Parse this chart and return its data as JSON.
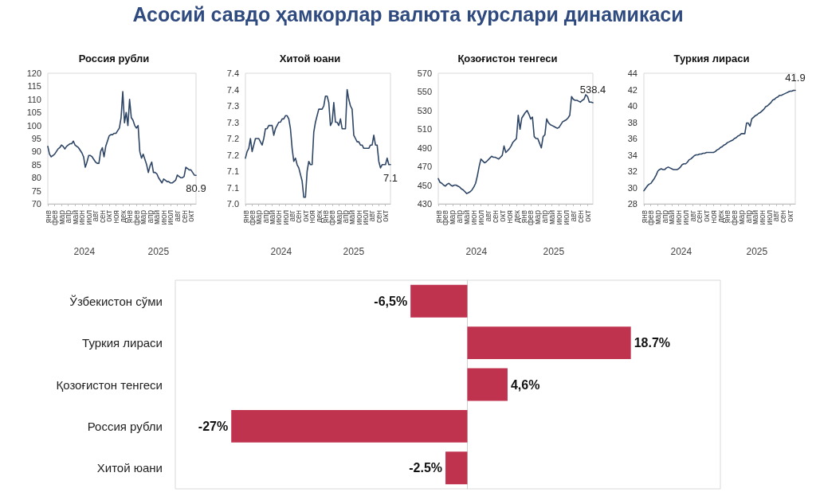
{
  "chart_data": [
    {
      "type": "other",
      "title": "Асосий савдо ҳамкорлар валюта курслари динамикаси"
    },
    {
      "type": "line",
      "title": "Россия рубли",
      "marker": "none",
      "categories": [
        "янв",
        null,
        null,
        null,
        "фев",
        null,
        null,
        null,
        "мар",
        null,
        null,
        null,
        "апр",
        null,
        null,
        null,
        "май",
        null,
        null,
        null,
        "июн",
        null,
        null,
        null,
        "июл",
        null,
        null,
        null,
        "авг",
        null,
        null,
        null,
        "сен",
        null,
        null,
        null,
        "окт",
        null,
        null,
        null,
        "ноя",
        null,
        null,
        null,
        "дек",
        null,
        null,
        null,
        "янв",
        null,
        null,
        null,
        "фев",
        null,
        null,
        null,
        "мар",
        null,
        null,
        null,
        "апр",
        null,
        null,
        null,
        "май",
        null,
        null,
        null,
        "июн",
        null,
        null,
        null,
        "июл",
        null,
        null,
        null,
        "авг",
        null,
        null,
        null,
        "сен",
        null,
        null,
        null,
        "окт",
        null,
        null,
        null
      ],
      "ylim": [
        70,
        120
      ],
      "yticks": [
        70,
        75,
        80,
        85,
        90,
        95,
        100,
        105,
        110,
        115,
        120
      ],
      "annotations": [
        "2024",
        "2025"
      ],
      "series": [
        {
          "color": "#2e4566",
          "values": [
            92,
            89,
            88,
            88.5,
            89,
            90,
            91,
            91.5,
            92.5,
            92,
            91,
            92,
            92.5,
            93,
            93,
            94,
            92.5,
            92,
            91.5,
            90.5,
            89.5,
            88,
            84,
            86,
            88.5,
            88.5,
            88,
            87,
            86,
            85.5,
            85.5,
            90,
            91.5,
            88,
            92,
            94,
            96,
            96.5,
            96.5,
            97,
            97,
            98,
            99,
            103,
            113,
            101,
            105,
            100,
            110,
            103,
            102,
            100,
            99,
            100,
            90,
            87.5,
            89,
            87,
            85,
            82,
            84.5,
            86,
            82,
            82,
            81.5,
            80,
            79,
            78,
            79.5,
            79,
            78.5,
            78.5,
            78,
            78,
            78.5,
            79,
            81,
            80.5,
            80,
            80,
            80.5,
            84,
            83.5,
            83,
            83,
            82,
            81,
            80.9
          ],
          "value_labels": [
            null,
            null,
            null,
            null,
            null,
            null,
            null,
            null,
            null,
            null,
            null,
            null,
            null,
            null,
            null,
            null,
            null,
            null,
            null,
            null,
            null,
            null,
            null,
            null,
            null,
            null,
            null,
            null,
            null,
            null,
            null,
            null,
            null,
            null,
            null,
            null,
            null,
            null,
            null,
            null,
            null,
            null,
            null,
            null,
            null,
            null,
            null,
            null,
            null,
            null,
            null,
            null,
            null,
            null,
            null,
            null,
            null,
            null,
            null,
            null,
            null,
            null,
            null,
            null,
            null,
            null,
            null,
            null,
            null,
            null,
            null,
            null,
            null,
            null,
            null,
            null,
            null,
            null,
            null,
            null,
            null,
            null,
            null,
            null,
            null,
            null,
            null,
            "80.9"
          ]
        }
      ]
    },
    {
      "type": "line",
      "title": "Хитой юани",
      "marker": "none",
      "categories": [
        "янв",
        null,
        null,
        null,
        "фев",
        null,
        null,
        null,
        "мар",
        null,
        null,
        null,
        "апр",
        null,
        null,
        null,
        "май",
        null,
        null,
        null,
        "июн",
        null,
        null,
        null,
        "июл",
        null,
        null,
        null,
        "авг",
        null,
        null,
        null,
        "сен",
        null,
        null,
        null,
        "окт",
        null,
        null,
        null,
        "ноя",
        null,
        null,
        null,
        "дек",
        null,
        null,
        null,
        "янв",
        null,
        null,
        null,
        "фев",
        null,
        null,
        null,
        "мар",
        null,
        null,
        null,
        "апр",
        null,
        null,
        null,
        "май",
        null,
        null,
        null,
        "июн",
        null,
        null,
        null,
        "июл",
        null,
        null,
        null,
        "авг",
        null,
        null,
        null,
        "сен",
        null,
        null,
        null,
        "окт",
        null,
        null,
        null
      ],
      "ylim": [
        7.0,
        7.4
      ],
      "yticks": [
        {
          "value": 7.0,
          "label": "7.0"
        },
        {
          "value": 7.05,
          "label": "7.1"
        },
        {
          "value": 7.1,
          "label": "7.1"
        },
        {
          "value": 7.15,
          "label": "7.2"
        },
        {
          "value": 7.2,
          "label": "7.2"
        },
        {
          "value": 7.25,
          "label": "7.3"
        },
        {
          "value": 7.3,
          "label": "7.3"
        },
        {
          "value": 7.35,
          "label": "7.4"
        },
        {
          "value": 7.4,
          "label": "7.4"
        }
      ],
      "annotations": [
        "2024",
        "2025"
      ],
      "series": [
        {
          "color": "#2e4566",
          "values": [
            7.14,
            7.16,
            7.17,
            7.2,
            7.16,
            7.18,
            7.2,
            7.2,
            7.2,
            7.19,
            7.18,
            7.2,
            7.23,
            7.23,
            7.24,
            7.24,
            7.24,
            7.21,
            7.23,
            7.24,
            7.25,
            7.25,
            7.26,
            7.26,
            7.27,
            7.27,
            7.26,
            7.23,
            7.17,
            7.13,
            7.14,
            7.12,
            7.11,
            7.09,
            7.07,
            7.02,
            7.02,
            7.1,
            7.13,
            7.12,
            7.12,
            7.22,
            7.25,
            7.27,
            7.29,
            7.29,
            7.29,
            7.3,
            7.33,
            7.33,
            7.31,
            7.24,
            7.25,
            7.31,
            7.25,
            7.25,
            7.24,
            7.26,
            7.23,
            7.23,
            7.23,
            7.35,
            7.32,
            7.3,
            7.29,
            7.21,
            7.2,
            7.19,
            7.19,
            7.18,
            7.18,
            7.17,
            7.17,
            7.17,
            7.17,
            7.18,
            7.18,
            7.21,
            7.18,
            7.18,
            7.13,
            7.11,
            7.12,
            7.12,
            7.12,
            7.14,
            7.12,
            7.12
          ],
          "value_labels": [
            null,
            null,
            null,
            null,
            null,
            null,
            null,
            null,
            null,
            null,
            null,
            null,
            null,
            null,
            null,
            null,
            null,
            null,
            null,
            null,
            null,
            null,
            null,
            null,
            null,
            null,
            null,
            null,
            null,
            null,
            null,
            null,
            null,
            null,
            null,
            null,
            null,
            null,
            null,
            null,
            null,
            null,
            null,
            null,
            null,
            null,
            null,
            null,
            null,
            null,
            null,
            null,
            null,
            null,
            null,
            null,
            null,
            null,
            null,
            null,
            null,
            null,
            null,
            null,
            null,
            null,
            null,
            null,
            null,
            null,
            null,
            null,
            null,
            null,
            null,
            null,
            null,
            null,
            null,
            null,
            null,
            null,
            null,
            null,
            null,
            null,
            null,
            "7.1"
          ]
        }
      ]
    },
    {
      "type": "line",
      "title": "Қозоғистон тенгеси",
      "marker": "none",
      "categories": [
        "янв",
        null,
        null,
        null,
        "фев",
        null,
        null,
        null,
        "мар",
        null,
        null,
        null,
        "апр",
        null,
        null,
        null,
        "май",
        null,
        null,
        null,
        "июн",
        null,
        null,
        null,
        "июл",
        null,
        null,
        null,
        "авг",
        null,
        null,
        null,
        "сен",
        null,
        null,
        null,
        "окт",
        null,
        null,
        null,
        "ноя",
        null,
        null,
        null,
        "дек",
        null,
        null,
        null,
        "янв",
        null,
        null,
        null,
        "фев",
        null,
        null,
        null,
        "мар",
        null,
        null,
        null,
        "апр",
        null,
        null,
        null,
        "май",
        null,
        null,
        null,
        "июн",
        null,
        null,
        null,
        "июл",
        null,
        null,
        null,
        "авг",
        null,
        null,
        null,
        "сен",
        null,
        null,
        null,
        "окт",
        null,
        null,
        null
      ],
      "ylim": [
        430,
        570
      ],
      "yticks": [
        430,
        450,
        470,
        490,
        510,
        530,
        550,
        570
      ],
      "annotations": [
        "2024",
        "2025"
      ],
      "series": [
        {
          "color": "#2e4566",
          "values": [
            457,
            453,
            452,
            450,
            449,
            451,
            452,
            450,
            449,
            450,
            450,
            449,
            448,
            446,
            445,
            443,
            441,
            442,
            443,
            445,
            448,
            452,
            460,
            470,
            478,
            476,
            474,
            475,
            477,
            479,
            481,
            480,
            480,
            479,
            478,
            480,
            482,
            492,
            485,
            487,
            489,
            492,
            496,
            498,
            500,
            525,
            510,
            522,
            525,
            528,
            530,
            526,
            521,
            523,
            502,
            500,
            500,
            495,
            490,
            502,
            504,
            521,
            517,
            515,
            514,
            513,
            512,
            511,
            512,
            515,
            518,
            519,
            520,
            522,
            525,
            545,
            542,
            541,
            541,
            540,
            539,
            541,
            542,
            547,
            545,
            539,
            539,
            538.4
          ],
          "value_labels": [
            null,
            null,
            null,
            null,
            null,
            null,
            null,
            null,
            null,
            null,
            null,
            null,
            null,
            null,
            null,
            null,
            null,
            null,
            null,
            null,
            null,
            null,
            null,
            null,
            null,
            null,
            null,
            null,
            null,
            null,
            null,
            null,
            null,
            null,
            null,
            null,
            null,
            null,
            null,
            null,
            null,
            null,
            null,
            null,
            null,
            null,
            null,
            null,
            null,
            null,
            null,
            null,
            null,
            null,
            null,
            null,
            null,
            null,
            null,
            null,
            null,
            null,
            null,
            null,
            null,
            null,
            null,
            null,
            null,
            null,
            null,
            null,
            null,
            null,
            null,
            null,
            null,
            null,
            null,
            null,
            null,
            null,
            null,
            null,
            null,
            null,
            null,
            "538.4"
          ]
        }
      ]
    },
    {
      "type": "line",
      "title": "Туркия лираси",
      "marker": "none",
      "categories": [
        "янв",
        null,
        null,
        null,
        "фев",
        null,
        null,
        null,
        "мар",
        null,
        null,
        null,
        "апр",
        null,
        null,
        null,
        "май",
        null,
        null,
        null,
        "июн",
        null,
        null,
        null,
        "июл",
        null,
        null,
        null,
        "авг",
        null,
        null,
        null,
        "сен",
        null,
        null,
        null,
        "окт",
        null,
        null,
        null,
        "ноя",
        null,
        null,
        null,
        "дек",
        null,
        null,
        null,
        "янв",
        null,
        null,
        null,
        "фев",
        null,
        null,
        null,
        "мар",
        null,
        null,
        null,
        "апр",
        null,
        null,
        null,
        "май",
        null,
        null,
        null,
        "июн",
        null,
        null,
        null,
        "июл",
        null,
        null,
        null,
        "авг",
        null,
        null,
        null,
        "сен",
        null,
        null,
        null,
        "окт",
        null,
        null,
        null
      ],
      "ylim": [
        28,
        44
      ],
      "yticks": [
        28,
        30,
        32,
        34,
        36,
        38,
        40,
        42,
        44
      ],
      "annotations": [
        "2024",
        "2025"
      ],
      "series": [
        {
          "color": "#2e4566",
          "values": [
            29.6,
            29.9,
            30.2,
            30.4,
            30.5,
            30.8,
            31.1,
            31.5,
            32,
            32.2,
            32.3,
            32.2,
            32.2,
            32.4,
            32.5,
            32.4,
            32.3,
            32.2,
            32.2,
            32.2,
            32.3,
            32.5,
            32.8,
            32.9,
            32.9,
            33.1,
            33.4,
            33.5,
            33.7,
            33.9,
            34,
            34,
            34.1,
            34.1,
            34.2,
            34.2,
            34.3,
            34.3,
            34.3,
            34.3,
            34.3,
            34.4,
            34.6,
            34.7,
            34.9,
            35,
            35.2,
            35.3,
            35.5,
            35.6,
            35.7,
            35.8,
            36,
            36.1,
            36.3,
            36.4,
            36.6,
            36.6,
            36.6,
            37.9,
            37.9,
            37.5,
            38.4,
            38.6,
            38.8,
            38.9,
            39.1,
            39.2,
            39.4,
            39.6,
            39.9,
            40,
            40.2,
            40.4,
            40.7,
            40.8,
            41,
            41.1,
            41.3,
            41.3,
            41.4,
            41.5,
            41.6,
            41.7,
            41.8,
            41.8,
            41.9,
            41.9
          ],
          "value_labels": [
            null,
            null,
            null,
            null,
            null,
            null,
            null,
            null,
            null,
            null,
            null,
            null,
            null,
            null,
            null,
            null,
            null,
            null,
            null,
            null,
            null,
            null,
            null,
            null,
            null,
            null,
            null,
            null,
            null,
            null,
            null,
            null,
            null,
            null,
            null,
            null,
            null,
            null,
            null,
            null,
            null,
            null,
            null,
            null,
            null,
            null,
            null,
            null,
            null,
            null,
            null,
            null,
            null,
            null,
            null,
            null,
            null,
            null,
            null,
            null,
            null,
            null,
            null,
            null,
            null,
            null,
            null,
            null,
            null,
            null,
            null,
            null,
            null,
            null,
            null,
            null,
            null,
            null,
            null,
            null,
            null,
            null,
            null,
            null,
            null,
            null,
            null,
            "41.9"
          ]
        }
      ]
    },
    {
      "type": "bar",
      "orientation": "horizontal",
      "tick_labels": "y",
      "categories": [
        "Ўзбекистон сўми",
        "Туркия лираси",
        "Қозоғистон тенгеси",
        "Россия рубли",
        "Хитой юани"
      ],
      "values": [
        -6.5,
        18.7,
        4.6,
        -27,
        -2.5
      ],
      "color": "#c0334f",
      "value_labels": [
        "-6,5%",
        "18.7%",
        "4,6%",
        "-27%",
        "-2.5%"
      ]
    }
  ]
}
